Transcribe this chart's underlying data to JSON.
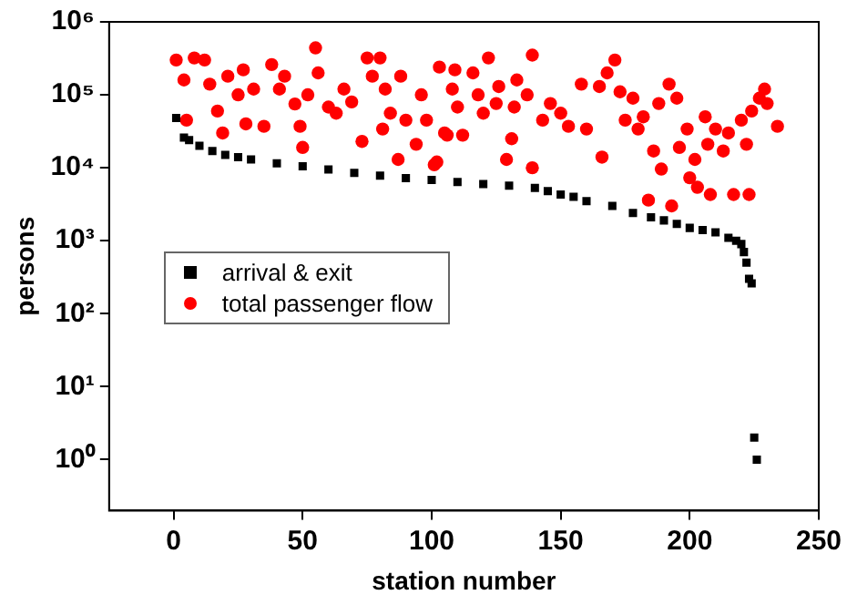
{
  "chart_data": {
    "type": "scatter",
    "xlabel": "station number",
    "ylabel": "persons",
    "log": "y",
    "xlim": [
      -25,
      250
    ],
    "xticks": [
      0,
      50,
      100,
      150,
      200,
      250
    ],
    "ylim": [
      0.2,
      1000000
    ],
    "yticks": [
      {
        "value": 1,
        "label": "10⁰"
      },
      {
        "value": 10,
        "label": "10¹"
      },
      {
        "value": 100,
        "label": "10²"
      },
      {
        "value": 1000,
        "label": "10³"
      },
      {
        "value": 10000,
        "label": "10⁴"
      },
      {
        "value": 100000,
        "label": "10⁵"
      },
      {
        "value": 1000000,
        "label": "10⁶"
      }
    ],
    "grid": false,
    "legend": "center left",
    "series": [
      {
        "name": "arrival & exit",
        "color": "#000000",
        "marker": "square",
        "x": [
          1,
          4,
          6,
          10,
          15,
          20,
          25,
          30,
          40,
          50,
          60,
          70,
          80,
          90,
          100,
          110,
          120,
          130,
          140,
          145,
          150,
          155,
          160,
          170,
          178,
          185,
          190,
          195,
          200,
          205,
          210,
          215,
          218,
          220,
          221,
          222,
          223,
          224,
          225,
          226
        ],
        "values": [
          48000,
          26000,
          24000,
          20000,
          17000,
          15000,
          14000,
          13000,
          11500,
          10500,
          9500,
          8500,
          7800,
          7200,
          6800,
          6400,
          6000,
          5700,
          5300,
          4800,
          4300,
          4000,
          3500,
          3000,
          2400,
          2100,
          1900,
          1700,
          1500,
          1400,
          1300,
          1100,
          1000,
          900,
          700,
          500,
          300,
          260,
          2,
          1
        ]
      },
      {
        "name": "total passenger flow",
        "color": "#ff0000",
        "marker": "circle",
        "x": [
          1,
          4,
          5,
          8,
          12,
          14,
          17,
          19,
          21,
          25,
          27,
          28,
          31,
          35,
          38,
          41,
          43,
          47,
          49,
          50,
          52,
          55,
          56,
          60,
          63,
          66,
          69,
          73,
          75,
          77,
          80,
          81,
          82,
          84,
          87,
          88,
          90,
          94,
          96,
          98,
          101,
          102,
          103,
          105,
          106,
          108,
          109,
          110,
          112,
          116,
          118,
          120,
          122,
          125,
          126,
          129,
          131,
          132,
          133,
          137,
          139,
          139,
          143,
          146,
          150,
          153,
          158,
          160,
          165,
          166,
          168,
          171,
          173,
          175,
          178,
          180,
          182,
          184,
          186,
          188,
          189,
          192,
          193,
          195,
          196,
          199,
          200,
          202,
          203,
          206,
          207,
          208,
          210,
          213,
          215,
          217,
          220,
          222,
          223,
          224,
          227,
          229,
          230,
          234
        ],
        "values": [
          300000,
          160000,
          45000,
          320000,
          300000,
          140000,
          60000,
          30000,
          180000,
          100000,
          220000,
          40000,
          120000,
          37000,
          260000,
          120000,
          180000,
          75000,
          37000,
          19000,
          100000,
          440000,
          200000,
          68000,
          56000,
          120000,
          80000,
          23000,
          320000,
          180000,
          320000,
          34000,
          120000,
          56000,
          13000,
          180000,
          45000,
          21000,
          100000,
          45000,
          11000,
          12000,
          240000,
          30000,
          28000,
          120000,
          220000,
          68000,
          28000,
          200000,
          100000,
          56000,
          320000,
          76000,
          130000,
          13000,
          25000,
          68000,
          160000,
          100000,
          10000,
          350000,
          45000,
          76000,
          56000,
          37000,
          140000,
          34000,
          130000,
          14000,
          200000,
          300000,
          110000,
          45000,
          90000,
          34000,
          50000,
          3600,
          17000,
          76000,
          9600,
          140000,
          3000,
          90000,
          19000,
          34000,
          7300,
          13000,
          5400,
          50000,
          21000,
          4300,
          34000,
          17000,
          30000,
          4300,
          45000,
          21000,
          4300,
          60000,
          90000,
          120000,
          76000,
          37000
        ]
      }
    ]
  }
}
